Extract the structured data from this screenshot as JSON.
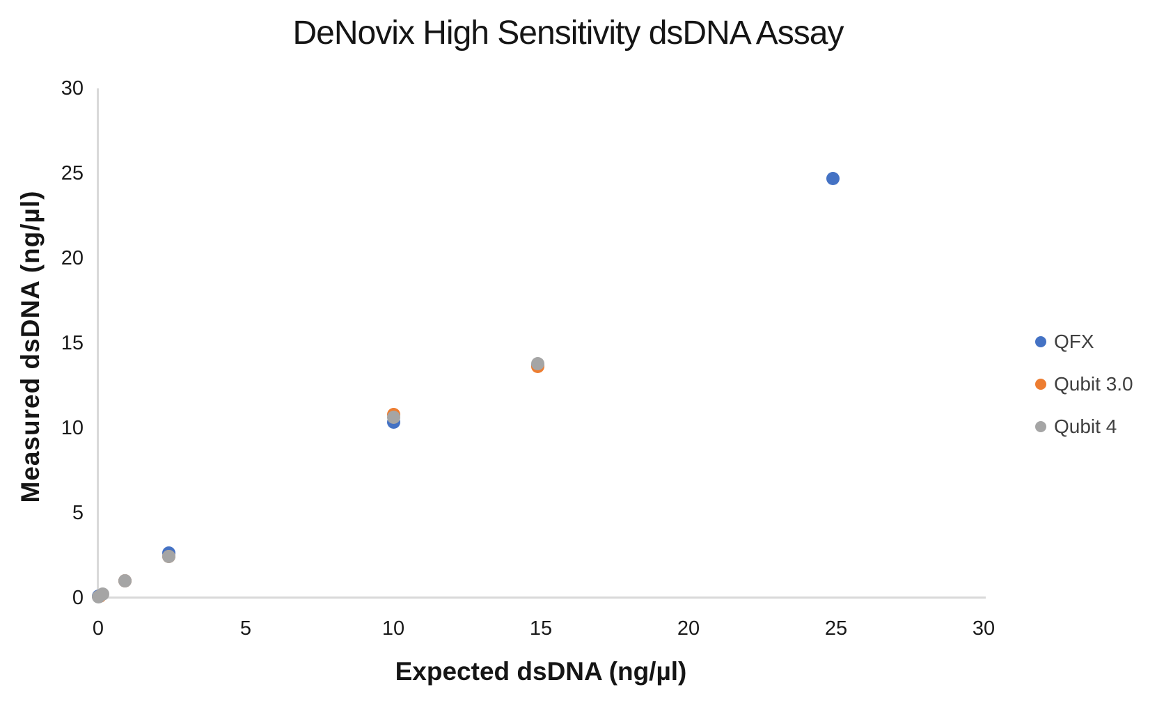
{
  "chart_data": {
    "type": "scatter",
    "title": "DeNovix High Sensitivity dsDNA Assay",
    "xlabel": "Expected dsDNA (ng/µl)",
    "ylabel": "Measured dsDNA (ng/µl)",
    "xlim": [
      0,
      30
    ],
    "ylim": [
      0,
      30
    ],
    "x_ticks": [
      0,
      5,
      10,
      15,
      20,
      25,
      30
    ],
    "y_ticks": [
      0,
      5,
      10,
      15,
      20,
      25,
      30
    ],
    "grid": false,
    "legend_position": "right",
    "axis_color": "#d9d9d9",
    "background_color": "#ffffff",
    "series": [
      {
        "name": "QFX",
        "color": "#4472c4",
        "points": [
          [
            0,
            0.07
          ],
          [
            0.9,
            1.0
          ],
          [
            2.4,
            2.62
          ],
          [
            10,
            10.35
          ],
          [
            14.9,
            13.7
          ],
          [
            24.9,
            24.7
          ]
        ]
      },
      {
        "name": "Qubit 3.0",
        "color": "#ed7d31",
        "points": [
          [
            0.05,
            0.1
          ],
          [
            0.9,
            1.0
          ],
          [
            2.4,
            2.4
          ],
          [
            10,
            10.8
          ],
          [
            14.9,
            13.6
          ]
        ]
      },
      {
        "name": "Qubit 4",
        "color": "#a5a5a5",
        "points": [
          [
            0,
            0.05
          ],
          [
            0.15,
            0.22
          ],
          [
            0.9,
            1.0
          ],
          [
            2.4,
            2.4
          ],
          [
            10,
            10.62
          ],
          [
            14.9,
            13.8
          ]
        ]
      }
    ]
  }
}
